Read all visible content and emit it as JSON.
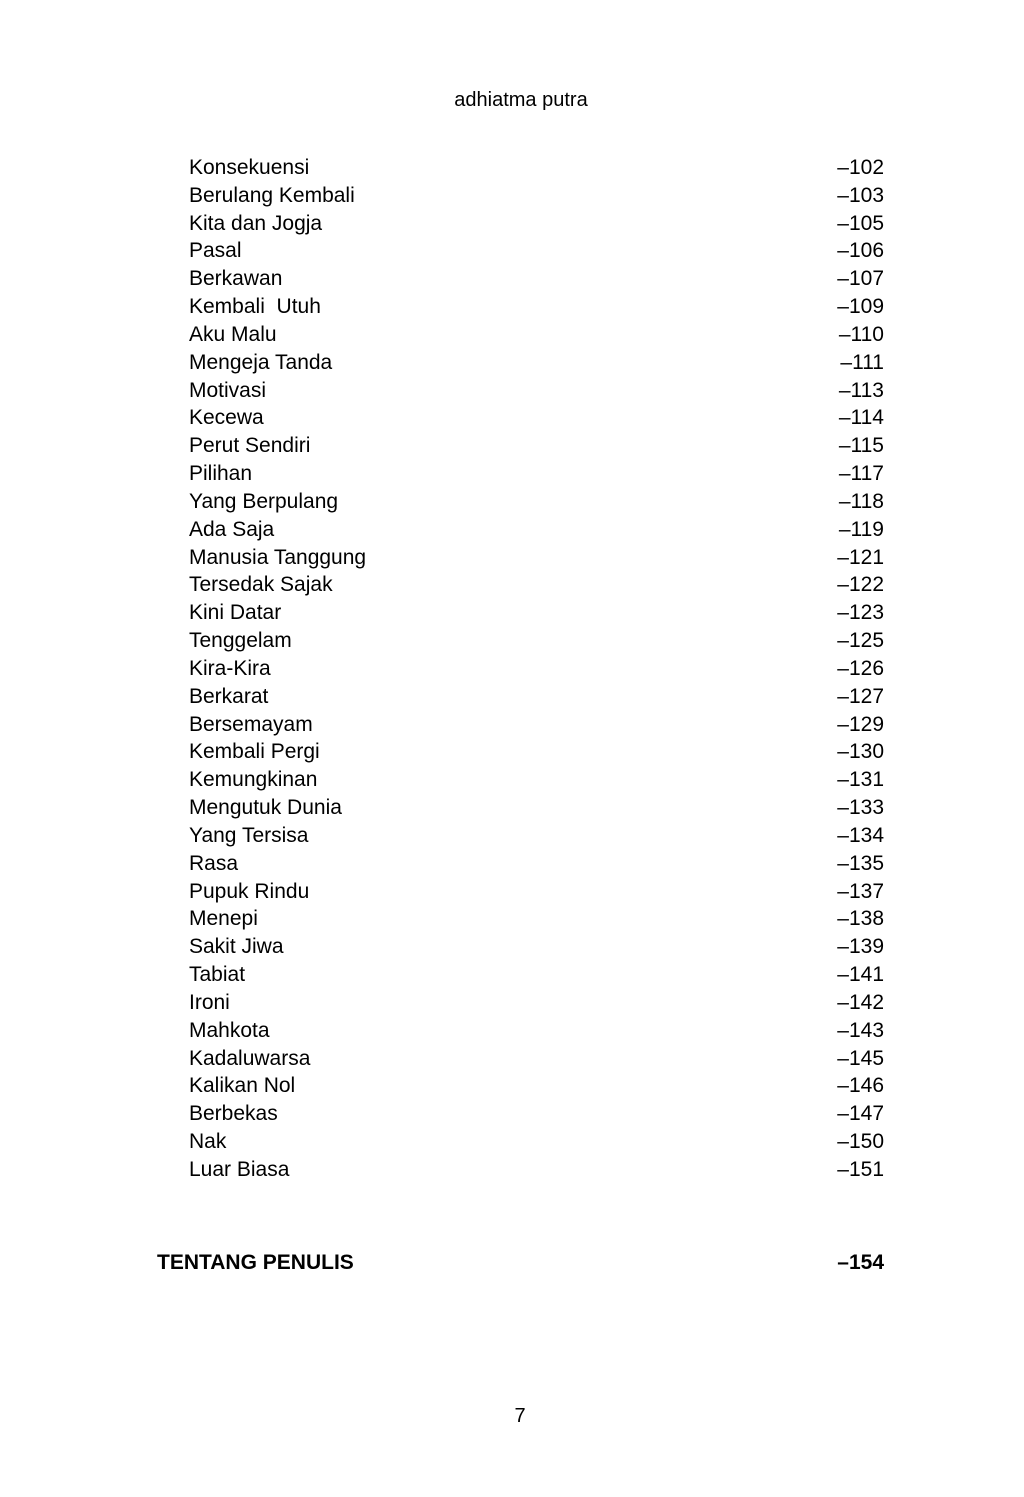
{
  "colors": {
    "background": "#ffffff",
    "text": "#000000"
  },
  "header": {
    "author": "adhiatma putra"
  },
  "toc": {
    "entries": [
      {
        "title": "Konsekuensi",
        "page": "–102"
      },
      {
        "title": "Berulang Kembali",
        "page": "–103"
      },
      {
        "title": "Kita dan Jogja",
        "page": "–105"
      },
      {
        "title": "Pasal",
        "page": "–106"
      },
      {
        "title": "Berkawan",
        "page": "–107"
      },
      {
        "title": "Kembali  Utuh",
        "page": "–109"
      },
      {
        "title": "Aku Malu",
        "page": "–110"
      },
      {
        "title": "Mengeja Tanda",
        "page": "–111"
      },
      {
        "title": "Motivasi",
        "page": "–113"
      },
      {
        "title": "Kecewa",
        "page": "–114"
      },
      {
        "title": "Perut Sendiri",
        "page": "–115"
      },
      {
        "title": "Pilihan",
        "page": "–117"
      },
      {
        "title": "Yang Berpulang",
        "page": "–118"
      },
      {
        "title": "Ada Saja",
        "page": "–119"
      },
      {
        "title": "Manusia Tanggung",
        "page": "–121"
      },
      {
        "title": "Tersedak Sajak",
        "page": "–122"
      },
      {
        "title": "Kini Datar",
        "page": "–123"
      },
      {
        "title": "Tenggelam",
        "page": "–125"
      },
      {
        "title": "Kira-Kira",
        "page": "–126"
      },
      {
        "title": "Berkarat",
        "page": "–127"
      },
      {
        "title": "Bersemayam",
        "page": "–129"
      },
      {
        "title": "Kembali Pergi",
        "page": "–130"
      },
      {
        "title": "Kemungkinan",
        "page": "–131"
      },
      {
        "title": "Mengutuk Dunia",
        "page": "–133"
      },
      {
        "title": "Yang Tersisa",
        "page": "–134"
      },
      {
        "title": "Rasa",
        "page": "–135"
      },
      {
        "title": "Pupuk Rindu",
        "page": "–137"
      },
      {
        "title": "Menepi",
        "page": "–138"
      },
      {
        "title": "Sakit Jiwa",
        "page": "–139"
      },
      {
        "title": "Tabiat",
        "page": "–141"
      },
      {
        "title": "Ironi",
        "page": "–142"
      },
      {
        "title": "Mahkota",
        "page": "–143"
      },
      {
        "title": "Kadaluwarsa",
        "page": "–145"
      },
      {
        "title": "Kalikan Nol",
        "page": "–146"
      },
      {
        "title": "Berbekas",
        "page": "–147"
      },
      {
        "title": "Nak",
        "page": "–150"
      },
      {
        "title": "Luar Biasa",
        "page": "–151"
      }
    ],
    "section": {
      "title": "TENTANG PENULIS",
      "page": "–154"
    }
  },
  "footer": {
    "page_number": "7"
  }
}
